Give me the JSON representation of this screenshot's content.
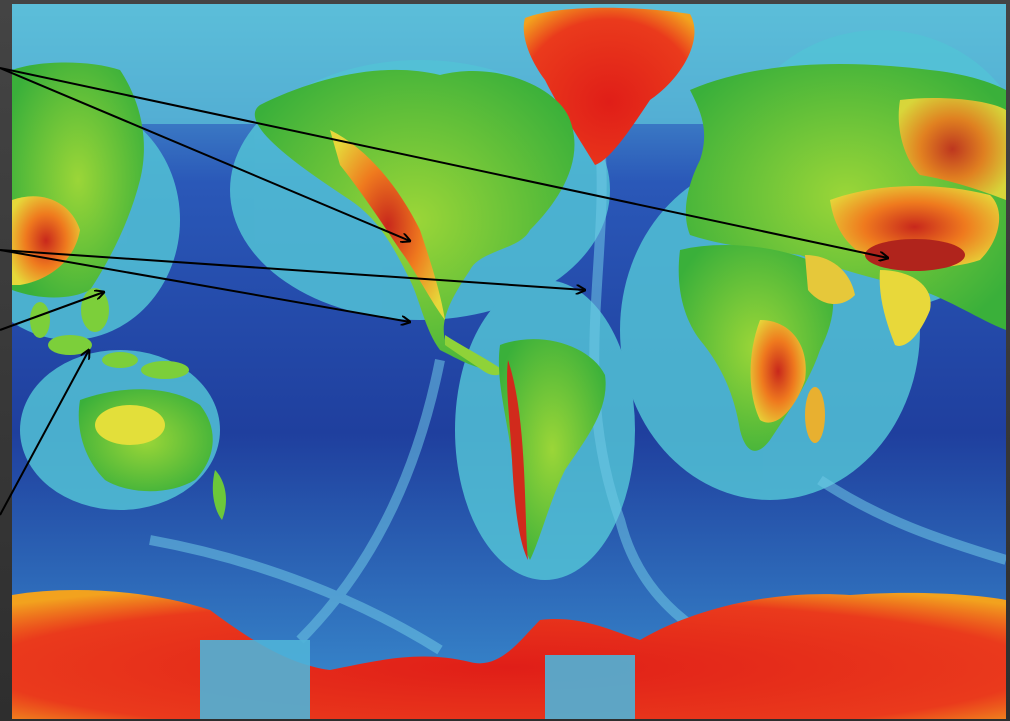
{
  "figure": {
    "subject": "world-relief-map",
    "arrow_count": 6,
    "colors": {
      "deep_ocean": "#1f3f9e",
      "mid_ocean": "#2f63c4",
      "shallow_shelf": "#4fb3d8",
      "lowland": "#3fbf3a",
      "upland": "#e8e23a",
      "highland": "#f08a1e",
      "mountain_peak": "#d9281c",
      "ice_cap": "#e5261b",
      "arrow": "#000000"
    }
  }
}
